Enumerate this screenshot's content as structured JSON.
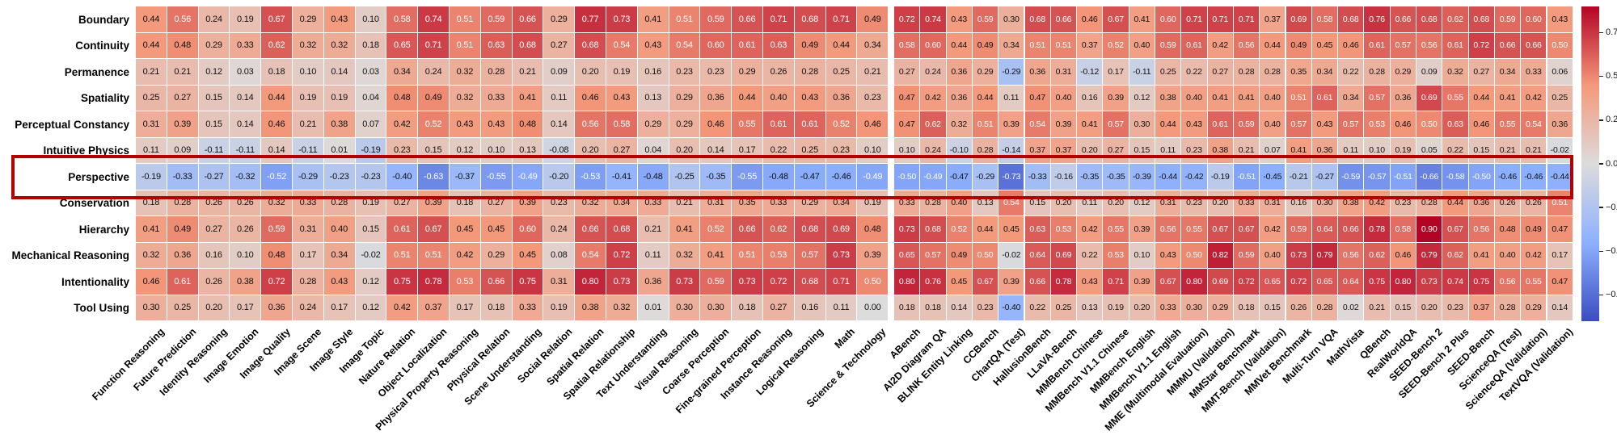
{
  "chart_data": {
    "type": "heatmap",
    "colormap": "coolwarm",
    "value_range": [
      -0.9,
      0.9
    ],
    "rows": [
      "Boundary",
      "Continuity",
      "Permanence",
      "Spatiality",
      "Perceptual Constancy",
      "Intuitive Physics",
      "Perspective",
      "Conservation",
      "Hierarchy",
      "Mechanical Reasoning",
      "Intentionality",
      "Tool Using"
    ],
    "column_groups": [
      {
        "id": "abilities",
        "columns": [
          "Function Reasoning",
          "Future Prediction",
          "Identity Reasoning",
          "Image Emotion",
          "Image Quality",
          "Image Scene",
          "Image Style",
          "Image Topic",
          "Nature Relation",
          "Object Localization",
          "Physical Property Reasoning",
          "Physical Relation",
          "Scene Understanding",
          "Social Relation",
          "Spatial Relation",
          "Spatial Relationship",
          "Text Understanding",
          "Visual Reasoning",
          "Coarse Perception",
          "Fine-grained Perception",
          "Instance Reasoning",
          "Logical Reasoning",
          "Math",
          "Science & Technology"
        ],
        "values": [
          [
            0.44,
            0.56,
            0.24,
            0.19,
            0.67,
            0.29,
            0.43,
            0.1,
            0.58,
            0.74,
            0.51,
            0.59,
            0.66,
            0.29,
            0.77,
            0.73,
            0.41,
            0.51,
            0.59,
            0.66,
            0.71,
            0.68,
            0.71,
            0.49
          ],
          [
            0.44,
            0.48,
            0.29,
            0.33,
            0.62,
            0.32,
            0.32,
            0.18,
            0.65,
            0.71,
            0.51,
            0.63,
            0.68,
            0.27,
            0.68,
            0.54,
            0.43,
            0.54,
            0.6,
            0.61,
            0.63,
            0.49,
            0.44,
            0.34
          ],
          [
            0.21,
            0.21,
            0.12,
            0.03,
            0.18,
            0.1,
            0.14,
            0.03,
            0.34,
            0.24,
            0.32,
            0.28,
            0.21,
            0.09,
            0.2,
            0.19,
            0.16,
            0.23,
            0.23,
            0.29,
            0.26,
            0.28,
            0.25,
            0.21
          ],
          [
            0.25,
            0.27,
            0.15,
            0.14,
            0.44,
            0.19,
            0.19,
            0.04,
            0.48,
            0.49,
            0.32,
            0.33,
            0.41,
            0.11,
            0.46,
            0.43,
            0.13,
            0.29,
            0.36,
            0.44,
            0.4,
            0.43,
            0.36,
            0.23
          ],
          [
            0.31,
            0.39,
            0.15,
            0.14,
            0.46,
            0.21,
            0.38,
            0.07,
            0.42,
            0.52,
            0.43,
            0.43,
            0.48,
            0.14,
            0.56,
            0.58,
            0.29,
            0.29,
            0.46,
            0.55,
            0.61,
            0.61,
            0.52,
            0.46
          ],
          [
            0.11,
            0.09,
            -0.11,
            -0.11,
            0.14,
            -0.11,
            0.01,
            -0.19,
            0.23,
            0.15,
            0.12,
            0.1,
            0.13,
            -0.08,
            0.2,
            0.27,
            0.04,
            0.2,
            0.14,
            0.17,
            0.22,
            0.25,
            0.23,
            0.1
          ],
          [
            -0.19,
            -0.33,
            -0.27,
            -0.32,
            -0.52,
            -0.29,
            -0.23,
            -0.23,
            -0.4,
            -0.63,
            -0.37,
            -0.55,
            -0.49,
            -0.2,
            -0.53,
            -0.41,
            -0.48,
            -0.25,
            -0.35,
            -0.55,
            -0.48,
            -0.47,
            -0.46,
            -0.49
          ],
          [
            0.18,
            0.28,
            0.26,
            0.26,
            0.32,
            0.33,
            0.28,
            0.19,
            0.27,
            0.39,
            0.18,
            0.27,
            0.39,
            0.23,
            0.32,
            0.34,
            0.33,
            0.21,
            0.31,
            0.35,
            0.33,
            0.29,
            0.34,
            0.19
          ],
          [
            0.41,
            0.49,
            0.27,
            0.26,
            0.59,
            0.31,
            0.4,
            0.15,
            0.61,
            0.67,
            0.45,
            0.45,
            0.6,
            0.24,
            0.66,
            0.68,
            0.21,
            0.41,
            0.52,
            0.66,
            0.62,
            0.68,
            0.69,
            0.48
          ],
          [
            0.32,
            0.36,
            0.16,
            0.1,
            0.48,
            0.17,
            0.34,
            -0.02,
            0.51,
            0.51,
            0.42,
            0.29,
            0.45,
            0.08,
            0.54,
            0.72,
            0.11,
            0.32,
            0.41,
            0.51,
            0.53,
            0.57,
            0.73,
            0.39
          ],
          [
            0.46,
            0.61,
            0.26,
            0.38,
            0.72,
            0.28,
            0.43,
            0.12,
            0.75,
            0.78,
            0.53,
            0.66,
            0.75,
            0.31,
            0.8,
            0.73,
            0.36,
            0.73,
            0.59,
            0.73,
            0.72,
            0.68,
            0.71,
            0.5
          ],
          [
            0.3,
            0.25,
            0.2,
            0.17,
            0.36,
            0.24,
            0.17,
            0.12,
            0.42,
            0.37,
            0.17,
            0.18,
            0.33,
            0.19,
            0.38,
            0.32,
            0.01,
            0.3,
            0.3,
            0.18,
            0.27,
            0.16,
            0.11,
            0.0
          ]
        ]
      },
      {
        "id": "benchmarks",
        "columns": [
          "ABench",
          "AI2D Diagram QA",
          "BLINK Entity Linking",
          "CCBench",
          "ChartQA (Test)",
          "HallusionBench",
          "LLaVA-Bench",
          "MMBench Chinese",
          "MMBench V1.1 Chinese",
          "MMBench English",
          "MMBench V1.1 English",
          "MME (Multimodal Evaluation)",
          "MMMU (Validation)",
          "MMStar Benchmark",
          "MMT-Bench (Validation)",
          "MMVet Benchmark",
          "Multi-Turn VQA",
          "MathVista",
          "QBench",
          "RealWorldQA",
          "SEED-Bench 2",
          "SEED-Bench 2 Plus",
          "SEED-Bench",
          "ScienceQA (Test)",
          "ScienceQA (Validation)",
          "TextVQA (Validation)"
        ],
        "values": [
          [
            0.72,
            0.74,
            0.43,
            0.59,
            0.3,
            0.68,
            0.66,
            0.46,
            0.67,
            0.41,
            0.6,
            0.71,
            0.71,
            0.71,
            0.37,
            0.69,
            0.58,
            0.68,
            0.76,
            0.66,
            0.68,
            0.62,
            0.68,
            0.59,
            0.6,
            0.43
          ],
          [
            0.58,
            0.6,
            0.44,
            0.49,
            0.34,
            0.51,
            0.51,
            0.37,
            0.52,
            0.4,
            0.59,
            0.61,
            0.42,
            0.56,
            0.44,
            0.49,
            0.45,
            0.46,
            0.61,
            0.57,
            0.56,
            0.61,
            0.72,
            0.66,
            0.66,
            0.5
          ],
          [
            0.27,
            0.24,
            0.36,
            0.29,
            -0.29,
            0.36,
            0.31,
            -0.12,
            0.17,
            -0.11,
            0.25,
            0.22,
            0.27,
            0.28,
            0.28,
            0.35,
            0.34,
            0.22,
            0.28,
            0.29,
            0.09,
            0.32,
            0.27,
            0.34,
            0.33,
            0.06
          ],
          [
            0.47,
            0.42,
            0.36,
            0.44,
            0.11,
            0.47,
            0.4,
            0.16,
            0.39,
            0.12,
            0.38,
            0.4,
            0.41,
            0.41,
            0.4,
            0.51,
            0.61,
            0.34,
            0.57,
            0.36,
            0.69,
            0.55,
            0.44,
            0.41,
            0.42,
            0.25
          ],
          [
            0.47,
            0.62,
            0.32,
            0.51,
            0.39,
            0.54,
            0.39,
            0.41,
            0.57,
            0.3,
            0.44,
            0.43,
            0.61,
            0.59,
            0.4,
            0.57,
            0.43,
            0.57,
            0.53,
            0.46,
            0.5,
            0.63,
            0.46,
            0.55,
            0.54,
            0.36
          ],
          [
            0.1,
            0.24,
            -0.1,
            0.28,
            -0.14,
            0.37,
            0.37,
            0.2,
            0.27,
            0.15,
            0.11,
            0.23,
            0.38,
            0.21,
            0.07,
            0.41,
            0.36,
            0.11,
            0.1,
            0.19,
            0.05,
            0.22,
            0.15,
            0.21,
            0.21,
            -0.02
          ],
          [
            -0.5,
            -0.49,
            -0.47,
            -0.29,
            -0.73,
            -0.33,
            -0.16,
            -0.35,
            -0.35,
            -0.39,
            -0.44,
            -0.42,
            -0.19,
            -0.51,
            -0.45,
            -0.21,
            -0.27,
            -0.59,
            -0.57,
            -0.51,
            -0.66,
            -0.58,
            -0.5,
            -0.46,
            -0.46,
            -0.44
          ],
          [
            0.33,
            0.28,
            0.4,
            0.13,
            0.54,
            0.15,
            0.2,
            0.11,
            0.2,
            0.12,
            0.31,
            0.23,
            0.2,
            0.33,
            0.31,
            0.16,
            0.3,
            0.38,
            0.42,
            0.23,
            0.28,
            0.44,
            0.36,
            0.26,
            0.26,
            0.51
          ],
          [
            0.73,
            0.68,
            0.52,
            0.44,
            0.45,
            0.63,
            0.53,
            0.42,
            0.55,
            0.39,
            0.56,
            0.55,
            0.67,
            0.67,
            0.42,
            0.59,
            0.64,
            0.66,
            0.78,
            0.58,
            0.9,
            0.67,
            0.56,
            0.48,
            0.49,
            0.47
          ],
          [
            0.65,
            0.57,
            0.49,
            0.5,
            -0.02,
            0.64,
            0.69,
            0.22,
            0.53,
            0.1,
            0.43,
            0.5,
            0.82,
            0.59,
            0.4,
            0.73,
            0.79,
            0.56,
            0.62,
            0.46,
            0.79,
            0.62,
            0.41,
            0.4,
            0.42,
            0.17
          ],
          [
            0.8,
            0.76,
            0.45,
            0.67,
            0.39,
            0.66,
            0.78,
            0.43,
            0.71,
            0.39,
            0.67,
            0.8,
            0.69,
            0.72,
            0.65,
            0.72,
            0.65,
            0.64,
            0.75,
            0.8,
            0.73,
            0.74,
            0.75,
            0.56,
            0.55,
            0.47
          ],
          [
            0.18,
            0.18,
            0.14,
            0.23,
            -0.4,
            0.22,
            0.25,
            0.13,
            0.19,
            0.2,
            0.33,
            0.3,
            0.29,
            0.18,
            0.15,
            0.26,
            0.28,
            0.02,
            0.21,
            0.15,
            0.2,
            0.23,
            0.37,
            0.28,
            0.29,
            0.14
          ]
        ]
      }
    ],
    "highlighted_row": {
      "label": "Perspective",
      "box_color": "#b30000"
    },
    "colorbar": {
      "tick_labels": [
        "0.75",
        "0.50",
        "0.25",
        "0.00",
        "−0.25",
        "−0.50",
        "−0.75"
      ],
      "tick_values": [
        0.75,
        0.5,
        0.25,
        0.0,
        -0.25,
        -0.5,
        -0.75
      ]
    }
  }
}
